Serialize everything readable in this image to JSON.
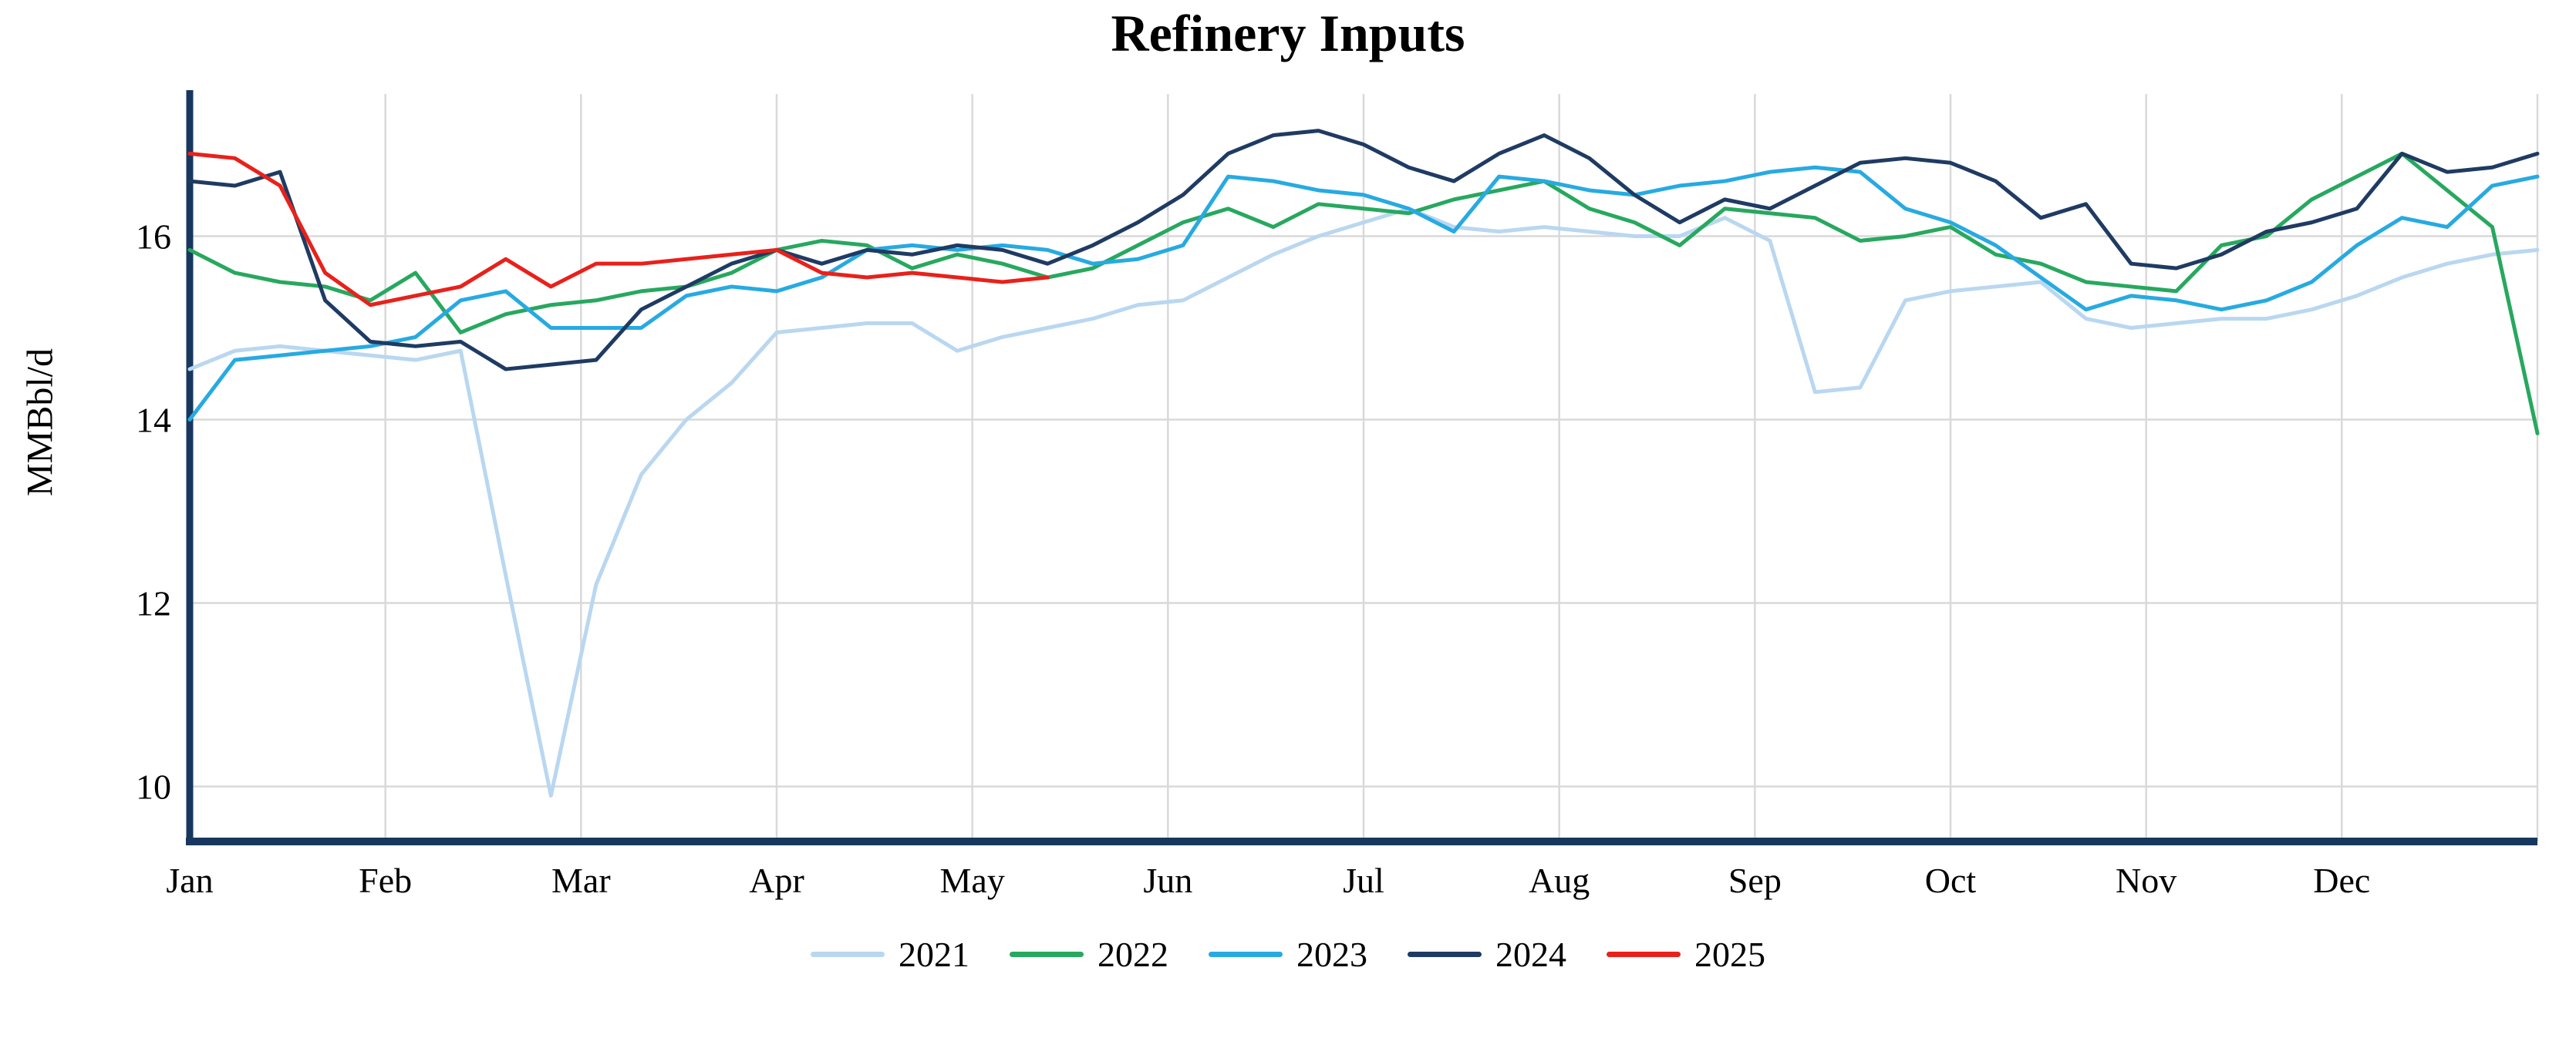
{
  "title": "Refinery Inputs",
  "ylabel": "MMBbl/d",
  "chart_data": {
    "type": "line",
    "title": "Refinery Inputs",
    "xlabel": "",
    "ylabel": "MMBbl/d",
    "x_unit": "week of year (Jan-Dec)",
    "month_labels": [
      "Jan",
      "Feb",
      "Mar",
      "Apr",
      "May",
      "Jun",
      "Jul",
      "Aug",
      "Sep",
      "Oct",
      "Nov",
      "Dec"
    ],
    "yticks": [
      10,
      12,
      14,
      16
    ],
    "ylim": [
      9.4,
      17.55
    ],
    "xlim_weeks": [
      0,
      52
    ],
    "grid": true,
    "legend_position": "bottom-center",
    "axis_color": "#17375e",
    "grid_color": "#d9d9d9",
    "series": [
      {
        "name": "2021",
        "color": "#b9d7f0",
        "values": [
          14.55,
          14.75,
          14.8,
          14.75,
          14.7,
          14.65,
          14.75,
          12.3,
          9.9,
          12.2,
          13.4,
          14.0,
          14.4,
          14.95,
          15.0,
          15.05,
          15.05,
          14.75,
          14.9,
          15.0,
          15.1,
          15.25,
          15.3,
          15.55,
          15.8,
          16.0,
          16.15,
          16.3,
          16.1,
          16.05,
          16.1,
          16.05,
          16.0,
          16.0,
          16.2,
          15.95,
          14.3,
          14.35,
          15.3,
          15.4,
          15.45,
          15.5,
          15.1,
          15.0,
          15.05,
          15.1,
          15.1,
          15.2,
          15.35,
          15.55,
          15.7,
          15.8,
          15.85
        ]
      },
      {
        "name": "2022",
        "color": "#27a85f",
        "values": [
          15.85,
          15.6,
          15.5,
          15.45,
          15.3,
          15.6,
          14.95,
          15.15,
          15.25,
          15.3,
          15.4,
          15.45,
          15.6,
          15.85,
          15.95,
          15.9,
          15.65,
          15.8,
          15.7,
          15.55,
          15.65,
          15.9,
          16.15,
          16.3,
          16.1,
          16.35,
          16.3,
          16.25,
          16.4,
          16.5,
          16.6,
          16.3,
          16.15,
          15.9,
          16.3,
          16.25,
          16.2,
          15.95,
          16.0,
          16.1,
          15.8,
          15.7,
          15.5,
          15.45,
          15.4,
          15.9,
          16.0,
          16.4,
          16.65,
          16.9,
          16.5,
          16.1,
          13.85
        ]
      },
      {
        "name": "2023",
        "color": "#27aae1",
        "values": [
          14.0,
          14.65,
          14.7,
          14.75,
          14.8,
          14.9,
          15.3,
          15.4,
          15.0,
          15.0,
          15.0,
          15.35,
          15.45,
          15.4,
          15.55,
          15.85,
          15.9,
          15.85,
          15.9,
          15.85,
          15.7,
          15.75,
          15.9,
          16.65,
          16.6,
          16.5,
          16.45,
          16.3,
          16.05,
          16.65,
          16.6,
          16.5,
          16.45,
          16.55,
          16.6,
          16.7,
          16.75,
          16.7,
          16.3,
          16.15,
          15.9,
          15.55,
          15.2,
          15.35,
          15.3,
          15.2,
          15.3,
          15.5,
          15.9,
          16.2,
          16.1,
          16.55,
          16.65
        ]
      },
      {
        "name": "2024",
        "color": "#1f3b63",
        "values": [
          16.6,
          16.55,
          16.7,
          15.3,
          14.85,
          14.8,
          14.85,
          14.55,
          14.6,
          14.65,
          15.2,
          15.45,
          15.7,
          15.85,
          15.7,
          15.85,
          15.8,
          15.9,
          15.85,
          15.7,
          15.9,
          16.15,
          16.45,
          16.9,
          17.1,
          17.15,
          17.0,
          16.75,
          16.6,
          16.9,
          17.1,
          16.85,
          16.45,
          16.15,
          16.4,
          16.3,
          16.55,
          16.8,
          16.85,
          16.8,
          16.6,
          16.2,
          16.35,
          15.7,
          15.65,
          15.8,
          16.05,
          16.15,
          16.3,
          16.9,
          16.7,
          16.75,
          16.9
        ]
      },
      {
        "name": "2025",
        "color": "#e8211b",
        "values": [
          16.9,
          16.85,
          16.55,
          15.6,
          15.25,
          15.35,
          15.45,
          15.75,
          15.45,
          15.7,
          15.7,
          15.75,
          15.8,
          15.85,
          15.6,
          15.55,
          15.6,
          15.55,
          15.5,
          15.55
        ]
      }
    ]
  }
}
